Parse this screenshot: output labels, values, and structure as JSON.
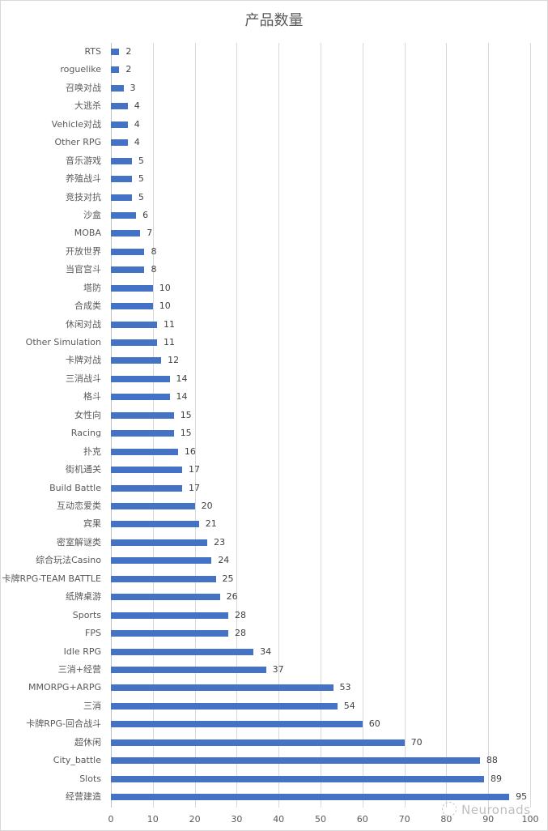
{
  "chart_data": {
    "type": "bar",
    "orientation": "horizontal",
    "title": "产品数量",
    "xlabel": "",
    "ylabel": "",
    "xlim": [
      0,
      100
    ],
    "x_ticks": [
      0,
      10,
      20,
      30,
      40,
      50,
      60,
      70,
      80,
      90,
      100
    ],
    "grid": true,
    "legend": null,
    "bar_color": "#4472c4",
    "data_labels": true,
    "categories": [
      "RTS",
      "roguelike",
      "召唤对战",
      "大逃杀",
      "Vehicle对战",
      "Other RPG",
      "音乐游戏",
      "养殖战斗",
      "竞技对抗",
      "沙盒",
      "MOBA",
      "开放世界",
      "当官宫斗",
      "塔防",
      "合成类",
      "休闲对战",
      "Other Simulation",
      "卡牌对战",
      "三消战斗",
      "格斗",
      "女性向",
      "Racing",
      "扑克",
      "街机通关",
      "Build Battle",
      "互动恋爱类",
      "宾果",
      "密室解谜类",
      "综合玩法Casino",
      "卡牌RPG-TEAM BATTLE",
      "纸牌桌游",
      "Sports",
      "FPS",
      "Idle RPG",
      "三消+经营",
      "MMORPG+ARPG",
      "三消",
      "卡牌RPG-回合战斗",
      "超休闲",
      "City_battle",
      "Slots",
      "经营建造"
    ],
    "values": [
      2,
      2,
      3,
      4,
      4,
      4,
      5,
      5,
      5,
      6,
      7,
      8,
      8,
      10,
      10,
      11,
      11,
      12,
      14,
      14,
      15,
      15,
      16,
      17,
      17,
      20,
      21,
      23,
      24,
      25,
      26,
      28,
      28,
      34,
      37,
      53,
      54,
      60,
      70,
      88,
      89,
      95
    ]
  },
  "watermark": "Neuronads"
}
